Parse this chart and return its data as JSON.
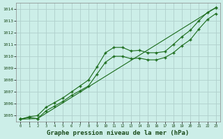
{
  "title": "Graphe pression niveau de la mer (hPa)",
  "bg_color": "#cceee8",
  "grid_color": "#b0d0cc",
  "line_color": "#1a6b1a",
  "marker_color": "#1a6b1a",
  "xlim": [
    -0.5,
    23.5
  ],
  "ylim": [
    1004.5,
    1014.5
  ],
  "xticks": [
    0,
    1,
    2,
    3,
    4,
    5,
    6,
    7,
    8,
    9,
    10,
    11,
    12,
    13,
    14,
    15,
    16,
    17,
    18,
    19,
    20,
    21,
    22,
    23
  ],
  "yticks": [
    1005,
    1006,
    1007,
    1008,
    1009,
    1010,
    1011,
    1012,
    1013,
    1014
  ],
  "series1_x": [
    0,
    1,
    2,
    3,
    4,
    5,
    6,
    7,
    8,
    9,
    10,
    11,
    12,
    13,
    14,
    15,
    16,
    17,
    18,
    19,
    20,
    21,
    22,
    23
  ],
  "series1_y": [
    1004.7,
    1004.9,
    1005.0,
    1005.7,
    1006.1,
    1006.5,
    1007.0,
    1007.5,
    1008.0,
    1009.1,
    1010.3,
    1010.75,
    1010.75,
    1010.45,
    1010.5,
    1010.3,
    1010.3,
    1010.4,
    1011.0,
    1011.65,
    1012.2,
    1013.0,
    1013.7,
    1014.1
  ],
  "series2_x": [
    0,
    1,
    2,
    3,
    4,
    5,
    6,
    7,
    8,
    9,
    10,
    11,
    12,
    13,
    14,
    15,
    16,
    17,
    18,
    19,
    20,
    21,
    22,
    23
  ],
  "series2_y": [
    1004.7,
    1004.85,
    1004.75,
    1005.4,
    1005.8,
    1006.2,
    1006.7,
    1007.1,
    1007.5,
    1008.5,
    1009.5,
    1010.0,
    1010.0,
    1009.8,
    1009.85,
    1009.7,
    1009.7,
    1009.9,
    1010.3,
    1010.9,
    1011.4,
    1012.3,
    1013.1,
    1013.6
  ],
  "series3_x": [
    0,
    2,
    23
  ],
  "series3_y": [
    1004.7,
    1004.75,
    1014.1
  ],
  "title_fontsize": 6.5
}
